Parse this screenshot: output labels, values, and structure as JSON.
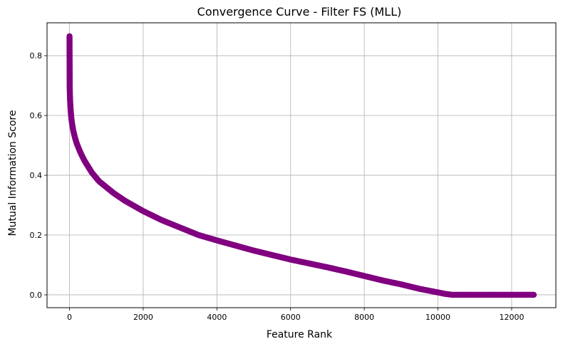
{
  "chart_data": {
    "type": "line",
    "title": "Convergence Curve - Filter FS (MLL)",
    "xlabel": "Feature Rank",
    "ylabel": "Mutual Information Score",
    "xlim": [
      -610,
      13200
    ],
    "ylim": [
      -0.043,
      0.91
    ],
    "xticks": [
      0,
      2000,
      4000,
      6000,
      8000,
      10000,
      12000
    ],
    "xtick_labels": [
      "0",
      "2000",
      "4000",
      "6000",
      "8000",
      "10000",
      "12000"
    ],
    "yticks": [
      0.0,
      0.2,
      0.4,
      0.6,
      0.8
    ],
    "ytick_labels": [
      "0.0",
      "0.2",
      "0.4",
      "0.6",
      "0.8"
    ],
    "grid": true,
    "color": "#800080",
    "marker": "circle",
    "series": [
      {
        "x": [
          0,
          1,
          2,
          3,
          4,
          5,
          8,
          10,
          15,
          20,
          30,
          40,
          50,
          60,
          80,
          100,
          150,
          200,
          250,
          300,
          400,
          500,
          600,
          800,
          1000,
          1200,
          1500,
          2000,
          2500,
          3000,
          3500,
          4000,
          4500,
          5000,
          5500,
          6000,
          6500,
          7000,
          7500,
          8000,
          8500,
          9000,
          9500,
          10000,
          10200,
          10400,
          10600,
          11000,
          11500,
          12000,
          12400,
          12600
        ],
        "y": [
          0.865,
          0.81,
          0.785,
          0.755,
          0.745,
          0.7,
          0.685,
          0.67,
          0.655,
          0.64,
          0.62,
          0.605,
          0.59,
          0.58,
          0.565,
          0.55,
          0.525,
          0.505,
          0.49,
          0.475,
          0.45,
          0.43,
          0.41,
          0.38,
          0.36,
          0.34,
          0.315,
          0.28,
          0.25,
          0.225,
          0.2,
          0.182,
          0.165,
          0.148,
          0.133,
          0.118,
          0.105,
          0.092,
          0.078,
          0.063,
          0.048,
          0.035,
          0.02,
          0.008,
          0.003,
          0.0,
          0.0,
          0.0,
          0.0,
          0.0,
          0.0,
          0.0
        ]
      }
    ]
  }
}
